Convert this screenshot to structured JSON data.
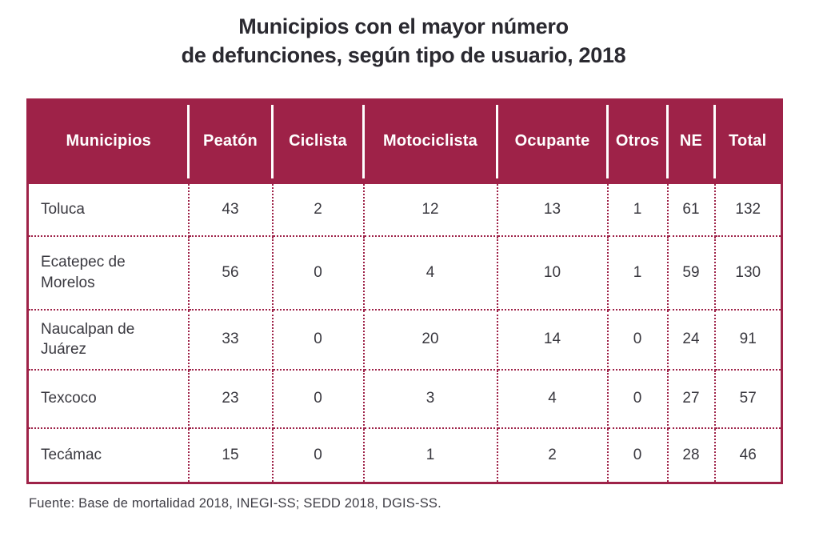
{
  "chart_data": {
    "type": "table",
    "title": "Municipios con el mayor número de defunciones, según tipo de usuario, 2018",
    "title_lines": [
      "Municipios con el mayor número",
      "de defunciones, según tipo de usuario, 2018"
    ],
    "columns": [
      "Municipios",
      "Peatón",
      "Ciclista",
      "Motociclista",
      "Ocupante",
      "Otros",
      "NE",
      "Total"
    ],
    "rows": [
      {
        "municipio": "Toluca",
        "values": [
          43,
          2,
          12,
          13,
          1,
          61,
          132
        ]
      },
      {
        "municipio": "Ecatepec de Morelos",
        "values": [
          56,
          0,
          4,
          10,
          1,
          59,
          130
        ]
      },
      {
        "municipio": "Naucalpan de Juárez",
        "values": [
          33,
          0,
          20,
          14,
          0,
          24,
          91
        ]
      },
      {
        "municipio": "Texcoco",
        "values": [
          23,
          0,
          3,
          4,
          0,
          27,
          57
        ]
      },
      {
        "municipio": "Tecámac",
        "values": [
          15,
          0,
          1,
          2,
          0,
          28,
          46
        ]
      }
    ],
    "source": "Fuente: Base de mortalidad 2018, INEGI-SS; SEDD 2018, DGIS-SS.",
    "layout_hints": {
      "grid": "dotted-maroon",
      "header_style": "solid-maroon-white-text"
    }
  },
  "colors": {
    "accent": "#9E2248",
    "header_text": "#FFFFFF",
    "body_text": "#39383F",
    "source_text": "#3E3D45"
  }
}
